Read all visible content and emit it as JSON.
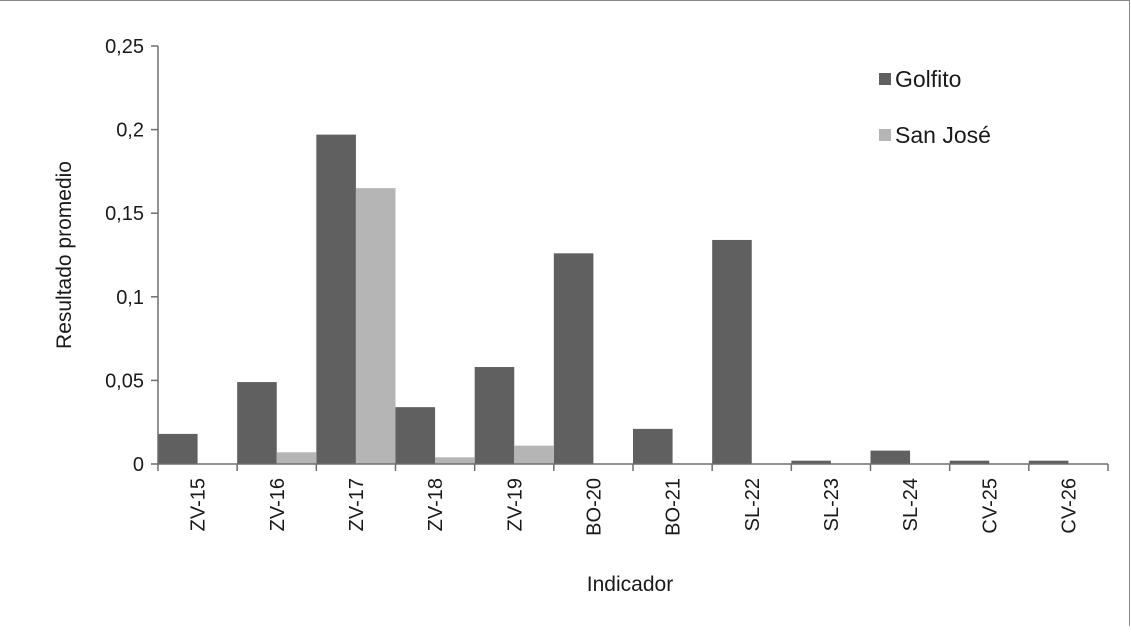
{
  "chart_data": {
    "type": "bar",
    "xlabel": "Indicador",
    "ylabel": "Resultado promedio",
    "ylim": [
      0,
      0.25
    ],
    "yticks": [
      "0",
      "0,05",
      "0,1",
      "0,15",
      "0,2",
      "0,25"
    ],
    "grid": false,
    "legend_position": "top-right",
    "categories": [
      "ZV-15",
      "ZV-16",
      "ZV-17",
      "ZV-18",
      "ZV-19",
      "BO-20",
      "BO-21",
      "SL-22",
      "SL-23",
      "SL-24",
      "CV-25",
      "CV-26"
    ],
    "series": [
      {
        "name": "Golfito",
        "color": "#606060",
        "values": [
          0.018,
          0.049,
          0.197,
          0.034,
          0.058,
          0.126,
          0.021,
          0.134,
          0.002,
          0.008,
          0.002,
          0.002
        ]
      },
      {
        "name": "San José",
        "color": "#b5b5b5",
        "values": [
          0,
          0.007,
          0.165,
          0.004,
          0.011,
          0,
          0,
          0,
          0,
          0,
          0,
          0
        ]
      }
    ]
  }
}
